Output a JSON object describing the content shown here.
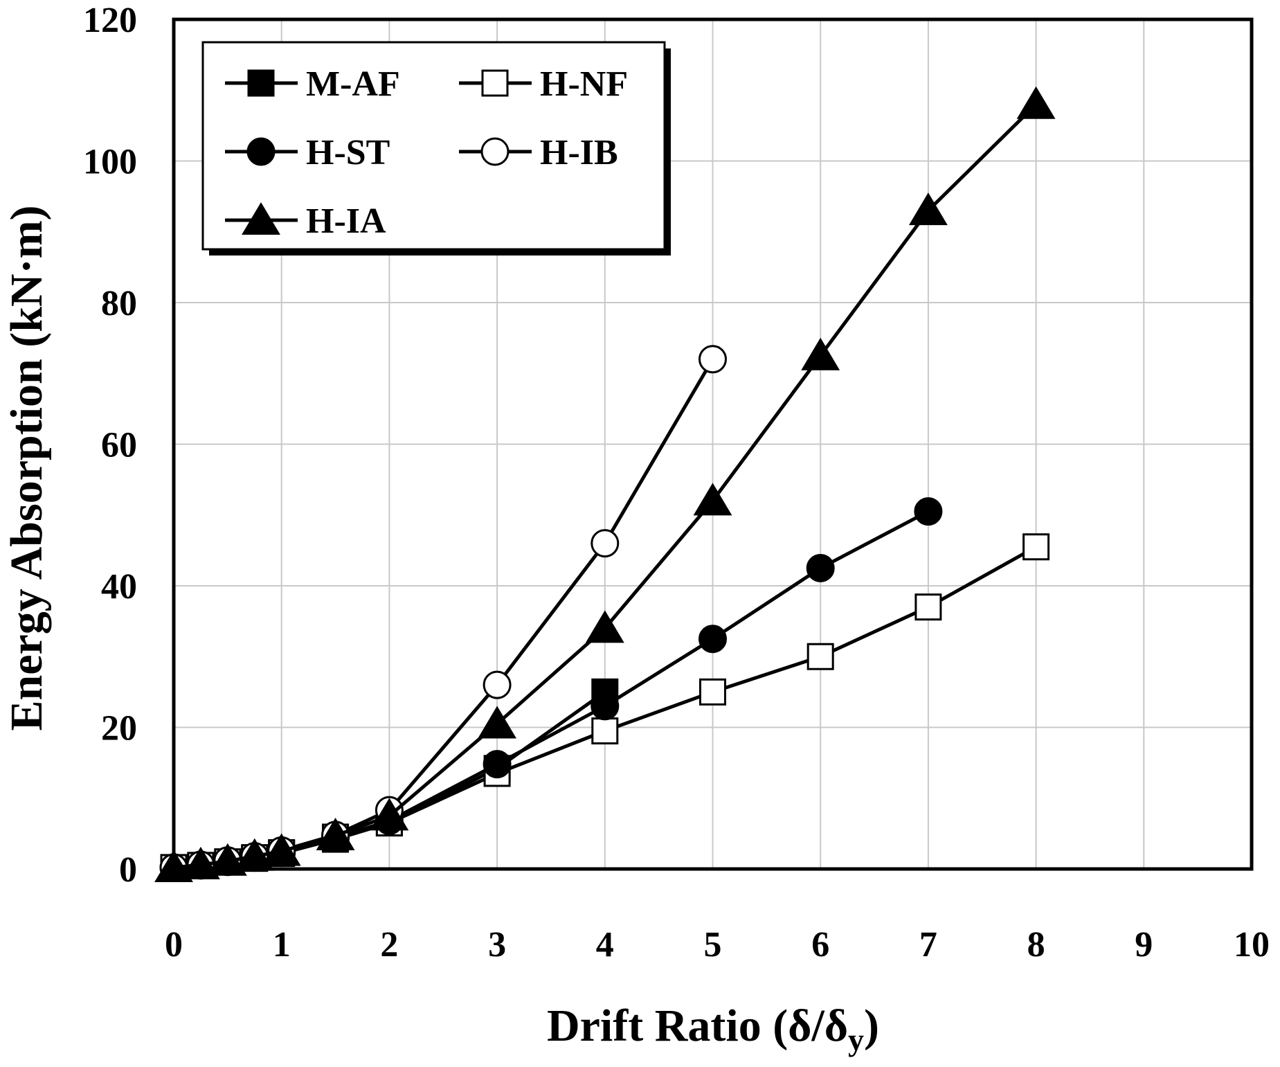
{
  "chart_data": {
    "type": "line",
    "title": "",
    "xlabel": "Drift Ratio (δ/δ",
    "xlabel_sub": "y",
    "xlabel_end": ")",
    "ylabel": "Energy Absorption (kN·m)",
    "xlim": [
      0,
      10
    ],
    "ylim": [
      0,
      120
    ],
    "xticks": [
      0,
      1,
      2,
      3,
      4,
      5,
      6,
      7,
      8,
      9,
      10
    ],
    "yticks": [
      0,
      20,
      40,
      60,
      80,
      100,
      120
    ],
    "grid": true,
    "legend_position": "top-left",
    "series": [
      {
        "name": "M-AF",
        "marker": "square-filled",
        "x": [
          0,
          0.25,
          0.5,
          0.75,
          1,
          1.5,
          2,
          3,
          4
        ],
        "y": [
          0.2,
          0.5,
          1.0,
          1.5,
          2.2,
          4.2,
          6.5,
          14.2,
          25.0
        ]
      },
      {
        "name": "H-NF",
        "marker": "square-open",
        "x": [
          0,
          0.25,
          0.5,
          0.75,
          1,
          1.5,
          2,
          3,
          4,
          5,
          6,
          7,
          8
        ],
        "y": [
          0.2,
          0.5,
          1.0,
          1.6,
          2.3,
          4.5,
          6.5,
          13.5,
          19.5,
          25.0,
          30.0,
          37.0,
          45.5
        ]
      },
      {
        "name": "H-ST",
        "marker": "circle-filled",
        "x": [
          0,
          0.25,
          0.5,
          0.75,
          1,
          1.5,
          2,
          3,
          4,
          5,
          6,
          7
        ],
        "y": [
          0.2,
          0.5,
          1.0,
          1.6,
          2.3,
          4.4,
          6.8,
          14.8,
          23.0,
          32.5,
          42.5,
          50.5
        ]
      },
      {
        "name": "H-IB",
        "marker": "circle-open",
        "x": [
          0,
          0.25,
          0.5,
          0.75,
          1,
          1.5,
          2,
          3,
          4,
          5
        ],
        "y": [
          0.2,
          0.6,
          1.2,
          1.8,
          2.6,
          4.8,
          8.3,
          26.0,
          46.0,
          72.0
        ]
      },
      {
        "name": "H-IA",
        "marker": "triangle-filled",
        "x": [
          0,
          0.25,
          0.5,
          0.75,
          1,
          1.5,
          2,
          3,
          4,
          5,
          6,
          7,
          8
        ],
        "y": [
          0.2,
          0.6,
          1.1,
          1.8,
          2.5,
          4.7,
          7.5,
          20.5,
          34.0,
          52.0,
          72.5,
          93.0,
          108.0
        ]
      }
    ]
  }
}
